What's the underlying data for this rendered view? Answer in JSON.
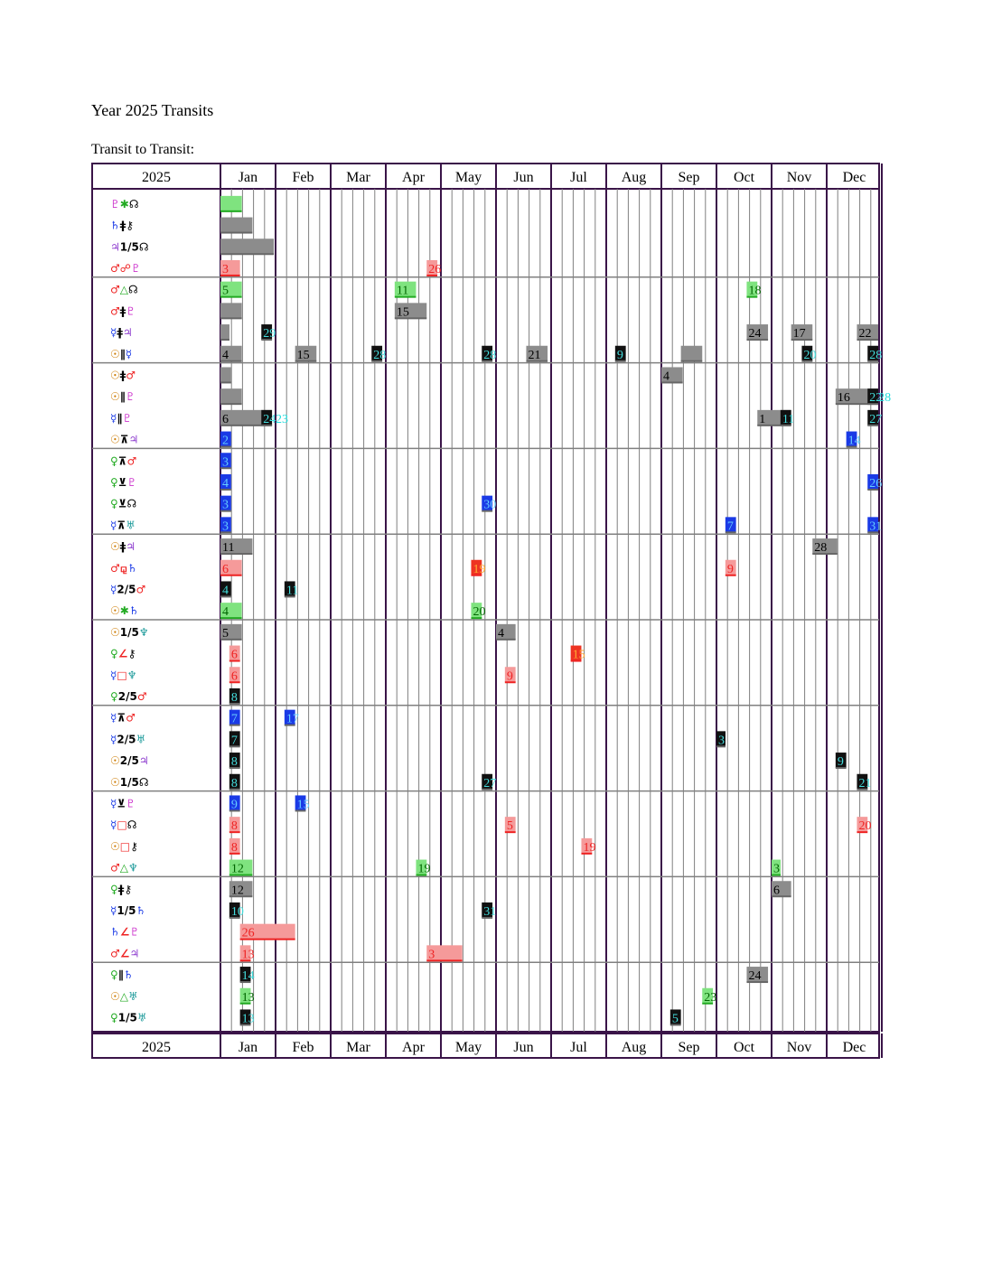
{
  "title": "Year 2025 Transits",
  "subtitle": "Transit to Transit:",
  "year": "2025",
  "months": [
    "Jan",
    "Feb",
    "Mar",
    "Apr",
    "May",
    "Jun",
    "Jul",
    "Aug",
    "Sep",
    "Oct",
    "Nov",
    "Dec"
  ],
  "colors": {
    "border": "#3a1448",
    "grid": "#808080",
    "green": "#22cc22",
    "gray": "#777777",
    "red": "#ee2222",
    "black": "#000000",
    "blue": "#1a3ae6",
    "cyan": "#33cccc",
    "orange": "#ff8c1a"
  },
  "rows": [
    {
      "p1": "♇",
      "a": "✱",
      "p2": "☊",
      "c1": "#cc33cc",
      "ca": "#22aa22",
      "c2": "#000000",
      "marks": [
        {
          "start": "2025-01-01",
          "end": "2025-01-13",
          "color": "green"
        }
      ]
    },
    {
      "p1": "♄",
      "a": "ǂ",
      "p2": "⚷",
      "c1": "#1a3ae6",
      "ca": "#000000",
      "c2": "#000000",
      "marks": [
        {
          "start": "2025-01-01",
          "end": "2025-01-19",
          "color": "gray"
        }
      ]
    },
    {
      "p1": "♃",
      "a": "1/5",
      "p2": "☊",
      "c1": "#8833cc",
      "ca": "#000000",
      "c2": "#000000",
      "marks": [
        {
          "start": "2025-01-01",
          "end": "2025-01-31",
          "color": "gray"
        }
      ]
    },
    {
      "p1": "♂",
      "a": "☍",
      "p2": "♇",
      "c1": "#ee2222",
      "ca": "#ee2222",
      "c2": "#cc33cc",
      "marks": [
        {
          "start": "2025-01-01",
          "end": "2025-01-12",
          "color": "red",
          "label": "3"
        },
        {
          "start": "2025-04-24",
          "end": "2025-04-30",
          "color": "red",
          "label": "26"
        }
      ]
    },
    {
      "p1": "♂",
      "a": "△",
      "p2": "☊",
      "c1": "#ee2222",
      "ca": "#22aa22",
      "c2": "#000000",
      "marks": [
        {
          "start": "2025-01-01",
          "end": "2025-01-13",
          "color": "green",
          "label": "5"
        },
        {
          "start": "2025-04-06",
          "end": "2025-04-18",
          "color": "green",
          "label": "11"
        },
        {
          "start": "2025-10-18",
          "end": "2025-10-24",
          "color": "green",
          "label": "18"
        }
      ]
    },
    {
      "p1": "♂",
      "a": "ǂ",
      "p2": "♇",
      "c1": "#ee2222",
      "ca": "#000000",
      "c2": "#cc33cc",
      "marks": [
        {
          "start": "2025-01-01",
          "end": "2025-01-13",
          "color": "gray"
        },
        {
          "start": "2025-04-06",
          "end": "2025-04-24",
          "color": "gray",
          "label": "15"
        }
      ]
    },
    {
      "p1": "☿",
      "a": "ǂ",
      "p2": "♃",
      "c1": "#1a3ae6",
      "ca": "#000000",
      "c2": "#8833cc",
      "marks": [
        {
          "start": "2025-01-01",
          "end": "2025-01-06",
          "color": "gray"
        },
        {
          "start": "2025-01-24",
          "end": "2025-01-30",
          "color": "black",
          "label": "29"
        },
        {
          "start": "2025-10-18",
          "end": "2025-10-30",
          "color": "gray",
          "label": "24"
        },
        {
          "start": "2025-11-12",
          "end": "2025-11-24",
          "color": "gray",
          "label": "17"
        },
        {
          "start": "2025-12-18",
          "end": "2025-12-31",
          "color": "gray",
          "label": "22"
        }
      ]
    },
    {
      "p1": "☉",
      "a": "∥",
      "p2": "☿",
      "c1": "#cc7a00",
      "ca": "#000000",
      "c2": "#1a3ae6",
      "marks": [
        {
          "start": "2025-01-01",
          "end": "2025-01-13",
          "color": "gray",
          "label": "4"
        },
        {
          "start": "2025-02-12",
          "end": "2025-02-24",
          "color": "gray",
          "label": "15"
        },
        {
          "start": "2025-03-24",
          "end": "2025-03-30",
          "color": "black",
          "label": "28"
        },
        {
          "start": "2025-05-24",
          "end": "2025-05-30",
          "color": "black",
          "label": "28"
        },
        {
          "start": "2025-06-18",
          "end": "2025-06-30",
          "color": "gray",
          "label": "21"
        },
        {
          "start": "2025-08-06",
          "end": "2025-08-12",
          "color": "black",
          "label": "9"
        },
        {
          "start": "2025-09-12",
          "end": "2025-09-24",
          "color": "gray"
        },
        {
          "start": "2025-11-18",
          "end": "2025-11-24",
          "color": "black",
          "label": "20"
        },
        {
          "start": "2025-12-24",
          "end": "2025-12-31",
          "color": "black",
          "label": "28"
        }
      ]
    },
    {
      "p1": "☉",
      "a": "ǂ",
      "p2": "♂",
      "c1": "#cc7a00",
      "ca": "#000000",
      "c2": "#ee2222",
      "marks": [
        {
          "start": "2025-01-01",
          "end": "2025-01-07",
          "color": "gray"
        },
        {
          "start": "2025-09-01",
          "end": "2025-09-13",
          "color": "gray",
          "label": "4"
        }
      ]
    },
    {
      "p1": "☉",
      "a": "∥",
      "p2": "♇",
      "c1": "#cc7a00",
      "ca": "#000000",
      "c2": "#cc33cc",
      "marks": [
        {
          "start": "2025-01-01",
          "end": "2025-01-13",
          "color": "gray"
        },
        {
          "start": "2025-12-06",
          "end": "2025-12-31",
          "color": "gray",
          "label": "16"
        },
        {
          "start": "2025-12-24",
          "end": "2025-12-31",
          "color": "black",
          "label": "22"
        },
        {
          "start": "2025-12-29",
          "end": "2025-12-31",
          "color": "cyan",
          "label": "28"
        }
      ]
    },
    {
      "p1": "☿",
      "a": "∥",
      "p2": "♇",
      "c1": "#1a3ae6",
      "ca": "#000000",
      "c2": "#cc33cc",
      "marks": [
        {
          "start": "2025-01-01",
          "end": "2025-01-30",
          "color": "gray",
          "label": "6"
        },
        {
          "start": "2025-01-24",
          "end": "2025-01-30",
          "color": "black",
          "label": "24"
        },
        {
          "start": "2025-01-31",
          "end": "2025-02-01",
          "color": "cyan",
          "label": "23"
        },
        {
          "start": "2025-10-24",
          "end": "2025-11-12",
          "color": "gray",
          "label": "1"
        },
        {
          "start": "2025-11-06",
          "end": "2025-11-12",
          "color": "black",
          "label": "11"
        },
        {
          "start": "2025-12-24",
          "end": "2025-12-31",
          "color": "black",
          "label": "27"
        }
      ]
    },
    {
      "p1": "☉",
      "a": "⊼",
      "p2": "♃",
      "c1": "#cc7a00",
      "ca": "#000000",
      "c2": "#8833cc",
      "marks": [
        {
          "start": "2025-01-01",
          "end": "2025-01-07",
          "color": "blue",
          "label": "2"
        },
        {
          "start": "2025-12-12",
          "end": "2025-12-18",
          "color": "blue",
          "label": "14"
        }
      ]
    },
    {
      "p1": "♀",
      "a": "⊼",
      "p2": "♂",
      "c1": "#22aa22",
      "ca": "#000000",
      "c2": "#ee2222",
      "marks": [
        {
          "start": "2025-01-01",
          "end": "2025-01-07",
          "color": "blue",
          "label": "3"
        }
      ]
    },
    {
      "p1": "♀",
      "a": "⊻",
      "p2": "♇",
      "c1": "#22aa22",
      "ca": "#000000",
      "c2": "#cc33cc",
      "marks": [
        {
          "start": "2025-01-01",
          "end": "2025-01-07",
          "color": "blue",
          "label": "4"
        },
        {
          "start": "2025-12-24",
          "end": "2025-12-31",
          "color": "blue",
          "label": "26"
        }
      ]
    },
    {
      "p1": "♀",
      "a": "⊻",
      "p2": "☊",
      "c1": "#22aa22",
      "ca": "#000000",
      "c2": "#000000",
      "marks": [
        {
          "start": "2025-01-01",
          "end": "2025-01-07",
          "color": "blue",
          "label": "3"
        },
        {
          "start": "2025-05-24",
          "end": "2025-05-30",
          "color": "blue",
          "label": "30"
        }
      ]
    },
    {
      "p1": "☿",
      "a": "⊼",
      "p2": "♅",
      "c1": "#1a3ae6",
      "ca": "#000000",
      "c2": "#1a9999",
      "marks": [
        {
          "start": "2025-01-01",
          "end": "2025-01-07",
          "color": "blue",
          "label": "3"
        },
        {
          "start": "2025-10-06",
          "end": "2025-10-12",
          "color": "blue",
          "label": "7"
        },
        {
          "start": "2025-12-24",
          "end": "2025-12-31",
          "color": "blue",
          "label": "31"
        }
      ]
    },
    {
      "p1": "☉",
      "a": "ǂ",
      "p2": "♃",
      "c1": "#cc7a00",
      "ca": "#000000",
      "c2": "#8833cc",
      "marks": [
        {
          "start": "2025-01-01",
          "end": "2025-01-19",
          "color": "gray",
          "label": "11"
        },
        {
          "start": "2025-11-24",
          "end": "2025-12-07",
          "color": "gray",
          "label": "28"
        }
      ]
    },
    {
      "p1": "♂",
      "a": "⚼",
      "p2": "♄",
      "c1": "#ee2222",
      "ca": "#ee2222",
      "c2": "#1a3ae6",
      "marks": [
        {
          "start": "2025-01-01",
          "end": "2025-01-13",
          "color": "red",
          "label": "6"
        },
        {
          "start": "2025-05-18",
          "end": "2025-05-24",
          "color": "orange",
          "label": "19"
        },
        {
          "start": "2025-10-06",
          "end": "2025-10-12",
          "color": "red",
          "label": "9"
        }
      ]
    },
    {
      "p1": "☿",
      "a": "2/5",
      "p2": "♂",
      "c1": "#1a3ae6",
      "ca": "#000000",
      "c2": "#ee2222",
      "marks": [
        {
          "start": "2025-01-01",
          "end": "2025-01-07",
          "color": "black",
          "label": "4"
        },
        {
          "start": "2025-02-06",
          "end": "2025-02-12",
          "color": "black",
          "label": "11"
        }
      ]
    },
    {
      "p1": "☉",
      "a": "✱",
      "p2": "♄",
      "c1": "#cc7a00",
      "ca": "#22aa22",
      "c2": "#1a3ae6",
      "marks": [
        {
          "start": "2025-01-01",
          "end": "2025-01-13",
          "color": "green",
          "label": "4"
        },
        {
          "start": "2025-05-18",
          "end": "2025-05-24",
          "color": "green",
          "label": "20"
        }
      ]
    },
    {
      "p1": "☉",
      "a": "1/5",
      "p2": "♆",
      "c1": "#cc7a00",
      "ca": "#000000",
      "c2": "#1a9999",
      "marks": [
        {
          "start": "2025-01-01",
          "end": "2025-01-13",
          "color": "gray",
          "label": "5"
        },
        {
          "start": "2025-06-01",
          "end": "2025-06-12",
          "color": "gray",
          "label": "4"
        }
      ]
    },
    {
      "p1": "♀",
      "a": "∠",
      "p2": "⚷",
      "c1": "#22aa22",
      "ca": "#ee2222",
      "c2": "#000000",
      "marks": [
        {
          "start": "2025-01-06",
          "end": "2025-01-12",
          "color": "red",
          "label": "6"
        },
        {
          "start": "2025-07-12",
          "end": "2025-07-18",
          "color": "orange",
          "label": "15"
        }
      ]
    },
    {
      "p1": "☿",
      "a": "□",
      "p2": "♆",
      "c1": "#1a3ae6",
      "ca": "#ee2222",
      "c2": "#1a9999",
      "marks": [
        {
          "start": "2025-01-06",
          "end": "2025-01-12",
          "color": "red",
          "label": "6"
        },
        {
          "start": "2025-06-06",
          "end": "2025-06-12",
          "color": "red",
          "label": "9"
        }
      ]
    },
    {
      "p1": "♀",
      "a": "2/5",
      "p2": "♂",
      "c1": "#22aa22",
      "ca": "#000000",
      "c2": "#ee2222",
      "marks": [
        {
          "start": "2025-01-06",
          "end": "2025-01-12",
          "color": "black",
          "label": "8"
        }
      ]
    },
    {
      "p1": "☿",
      "a": "⊼",
      "p2": "♂",
      "c1": "#1a3ae6",
      "ca": "#000000",
      "c2": "#ee2222",
      "marks": [
        {
          "start": "2025-01-06",
          "end": "2025-01-12",
          "color": "blue",
          "label": "7"
        },
        {
          "start": "2025-02-06",
          "end": "2025-02-12",
          "color": "blue",
          "label": "17"
        }
      ]
    },
    {
      "p1": "☿",
      "a": "2/5",
      "p2": "♅",
      "c1": "#1a3ae6",
      "ca": "#000000",
      "c2": "#1a9999",
      "marks": [
        {
          "start": "2025-01-06",
          "end": "2025-01-12",
          "color": "black",
          "label": "7"
        },
        {
          "start": "2025-10-01",
          "end": "2025-10-06",
          "color": "black",
          "label": "3"
        }
      ]
    },
    {
      "p1": "☉",
      "a": "2/5",
      "p2": "♃",
      "c1": "#cc7a00",
      "ca": "#000000",
      "c2": "#8833cc",
      "marks": [
        {
          "start": "2025-01-06",
          "end": "2025-01-12",
          "color": "black",
          "label": "8"
        },
        {
          "start": "2025-12-06",
          "end": "2025-12-12",
          "color": "black",
          "label": "9"
        }
      ]
    },
    {
      "p1": "☉",
      "a": "1/5",
      "p2": "☊",
      "c1": "#cc7a00",
      "ca": "#000000",
      "c2": "#000000",
      "marks": [
        {
          "start": "2025-01-06",
          "end": "2025-01-12",
          "color": "black",
          "label": "8"
        },
        {
          "start": "2025-05-24",
          "end": "2025-05-30",
          "color": "black",
          "label": "27"
        },
        {
          "start": "2025-12-18",
          "end": "2025-12-24",
          "color": "black",
          "label": "21"
        }
      ]
    },
    {
      "p1": "☿",
      "a": "⊻",
      "p2": "♇",
      "c1": "#1a3ae6",
      "ca": "#000000",
      "c2": "#cc33cc",
      "marks": [
        {
          "start": "2025-01-06",
          "end": "2025-01-12",
          "color": "blue",
          "label": "9"
        },
        {
          "start": "2025-02-12",
          "end": "2025-02-18",
          "color": "blue",
          "label": "15"
        }
      ]
    },
    {
      "p1": "☿",
      "a": "□",
      "p2": "☊",
      "c1": "#1a3ae6",
      "ca": "#ee2222",
      "c2": "#000000",
      "marks": [
        {
          "start": "2025-01-06",
          "end": "2025-01-12",
          "color": "red",
          "label": "8"
        },
        {
          "start": "2025-06-06",
          "end": "2025-06-12",
          "color": "red",
          "label": "5"
        },
        {
          "start": "2025-12-18",
          "end": "2025-12-24",
          "color": "red",
          "label": "20"
        }
      ]
    },
    {
      "p1": "☉",
      "a": "□",
      "p2": "⚷",
      "c1": "#cc7a00",
      "ca": "#ee2222",
      "c2": "#000000",
      "marks": [
        {
          "start": "2025-01-06",
          "end": "2025-01-12",
          "color": "red",
          "label": "8"
        },
        {
          "start": "2025-07-18",
          "end": "2025-07-24",
          "color": "red",
          "label": "19"
        }
      ]
    },
    {
      "p1": "♂",
      "a": "△",
      "p2": "♆",
      "c1": "#ee2222",
      "ca": "#22aa22",
      "c2": "#1a9999",
      "marks": [
        {
          "start": "2025-01-06",
          "end": "2025-01-19",
          "color": "green",
          "label": "12"
        },
        {
          "start": "2025-04-18",
          "end": "2025-04-24",
          "color": "green",
          "label": "19"
        },
        {
          "start": "2025-11-01",
          "end": "2025-11-06",
          "color": "green",
          "label": "3"
        }
      ]
    },
    {
      "p1": "♀",
      "a": "ǂ",
      "p2": "⚷",
      "c1": "#22aa22",
      "ca": "#000000",
      "c2": "#000000",
      "marks": [
        {
          "start": "2025-01-06",
          "end": "2025-01-19",
          "color": "gray",
          "label": "12"
        },
        {
          "start": "2025-11-01",
          "end": "2025-11-12",
          "color": "gray",
          "label": "6"
        }
      ]
    },
    {
      "p1": "☿",
      "a": "1/5",
      "p2": "♄",
      "c1": "#1a3ae6",
      "ca": "#000000",
      "c2": "#1a3ae6",
      "marks": [
        {
          "start": "2025-01-06",
          "end": "2025-01-12",
          "color": "black",
          "label": "10"
        },
        {
          "start": "2025-05-24",
          "end": "2025-05-30",
          "color": "black",
          "label": "31"
        }
      ]
    },
    {
      "p1": "♄",
      "a": "∠",
      "p2": "♇",
      "c1": "#1a3ae6",
      "ca": "#ee2222",
      "c2": "#cc33cc",
      "marks": [
        {
          "start": "2025-01-12",
          "end": "2025-02-12",
          "color": "red",
          "label": "26"
        }
      ]
    },
    {
      "p1": "♂",
      "a": "∠",
      "p2": "♃",
      "c1": "#ee2222",
      "ca": "#ee2222",
      "c2": "#8833cc",
      "marks": [
        {
          "start": "2025-01-12",
          "end": "2025-01-18",
          "color": "red",
          "label": "13"
        },
        {
          "start": "2025-04-24",
          "end": "2025-05-13",
          "color": "red",
          "label": "3"
        }
      ]
    },
    {
      "p1": "♀",
      "a": "∥",
      "p2": "♄",
      "c1": "#22aa22",
      "ca": "#000000",
      "c2": "#1a3ae6",
      "marks": [
        {
          "start": "2025-01-12",
          "end": "2025-01-18",
          "color": "black",
          "label": "14"
        },
        {
          "start": "2025-10-18",
          "end": "2025-10-30",
          "color": "gray",
          "label": "24"
        }
      ]
    },
    {
      "p1": "☉",
      "a": "△",
      "p2": "♅",
      "c1": "#cc7a00",
      "ca": "#22aa22",
      "c2": "#1a9999",
      "marks": [
        {
          "start": "2025-01-12",
          "end": "2025-01-18",
          "color": "green",
          "label": "13"
        },
        {
          "start": "2025-09-24",
          "end": "2025-09-30",
          "color": "green",
          "label": "23"
        }
      ]
    },
    {
      "p1": "♀",
      "a": "1/5",
      "p2": "♅",
      "c1": "#22aa22",
      "ca": "#000000",
      "c2": "#1a9999",
      "marks": [
        {
          "start": "2025-01-12",
          "end": "2025-01-18",
          "color": "black",
          "label": "13"
        },
        {
          "start": "2025-09-06",
          "end": "2025-09-12",
          "color": "black",
          "label": "5"
        }
      ]
    }
  ]
}
